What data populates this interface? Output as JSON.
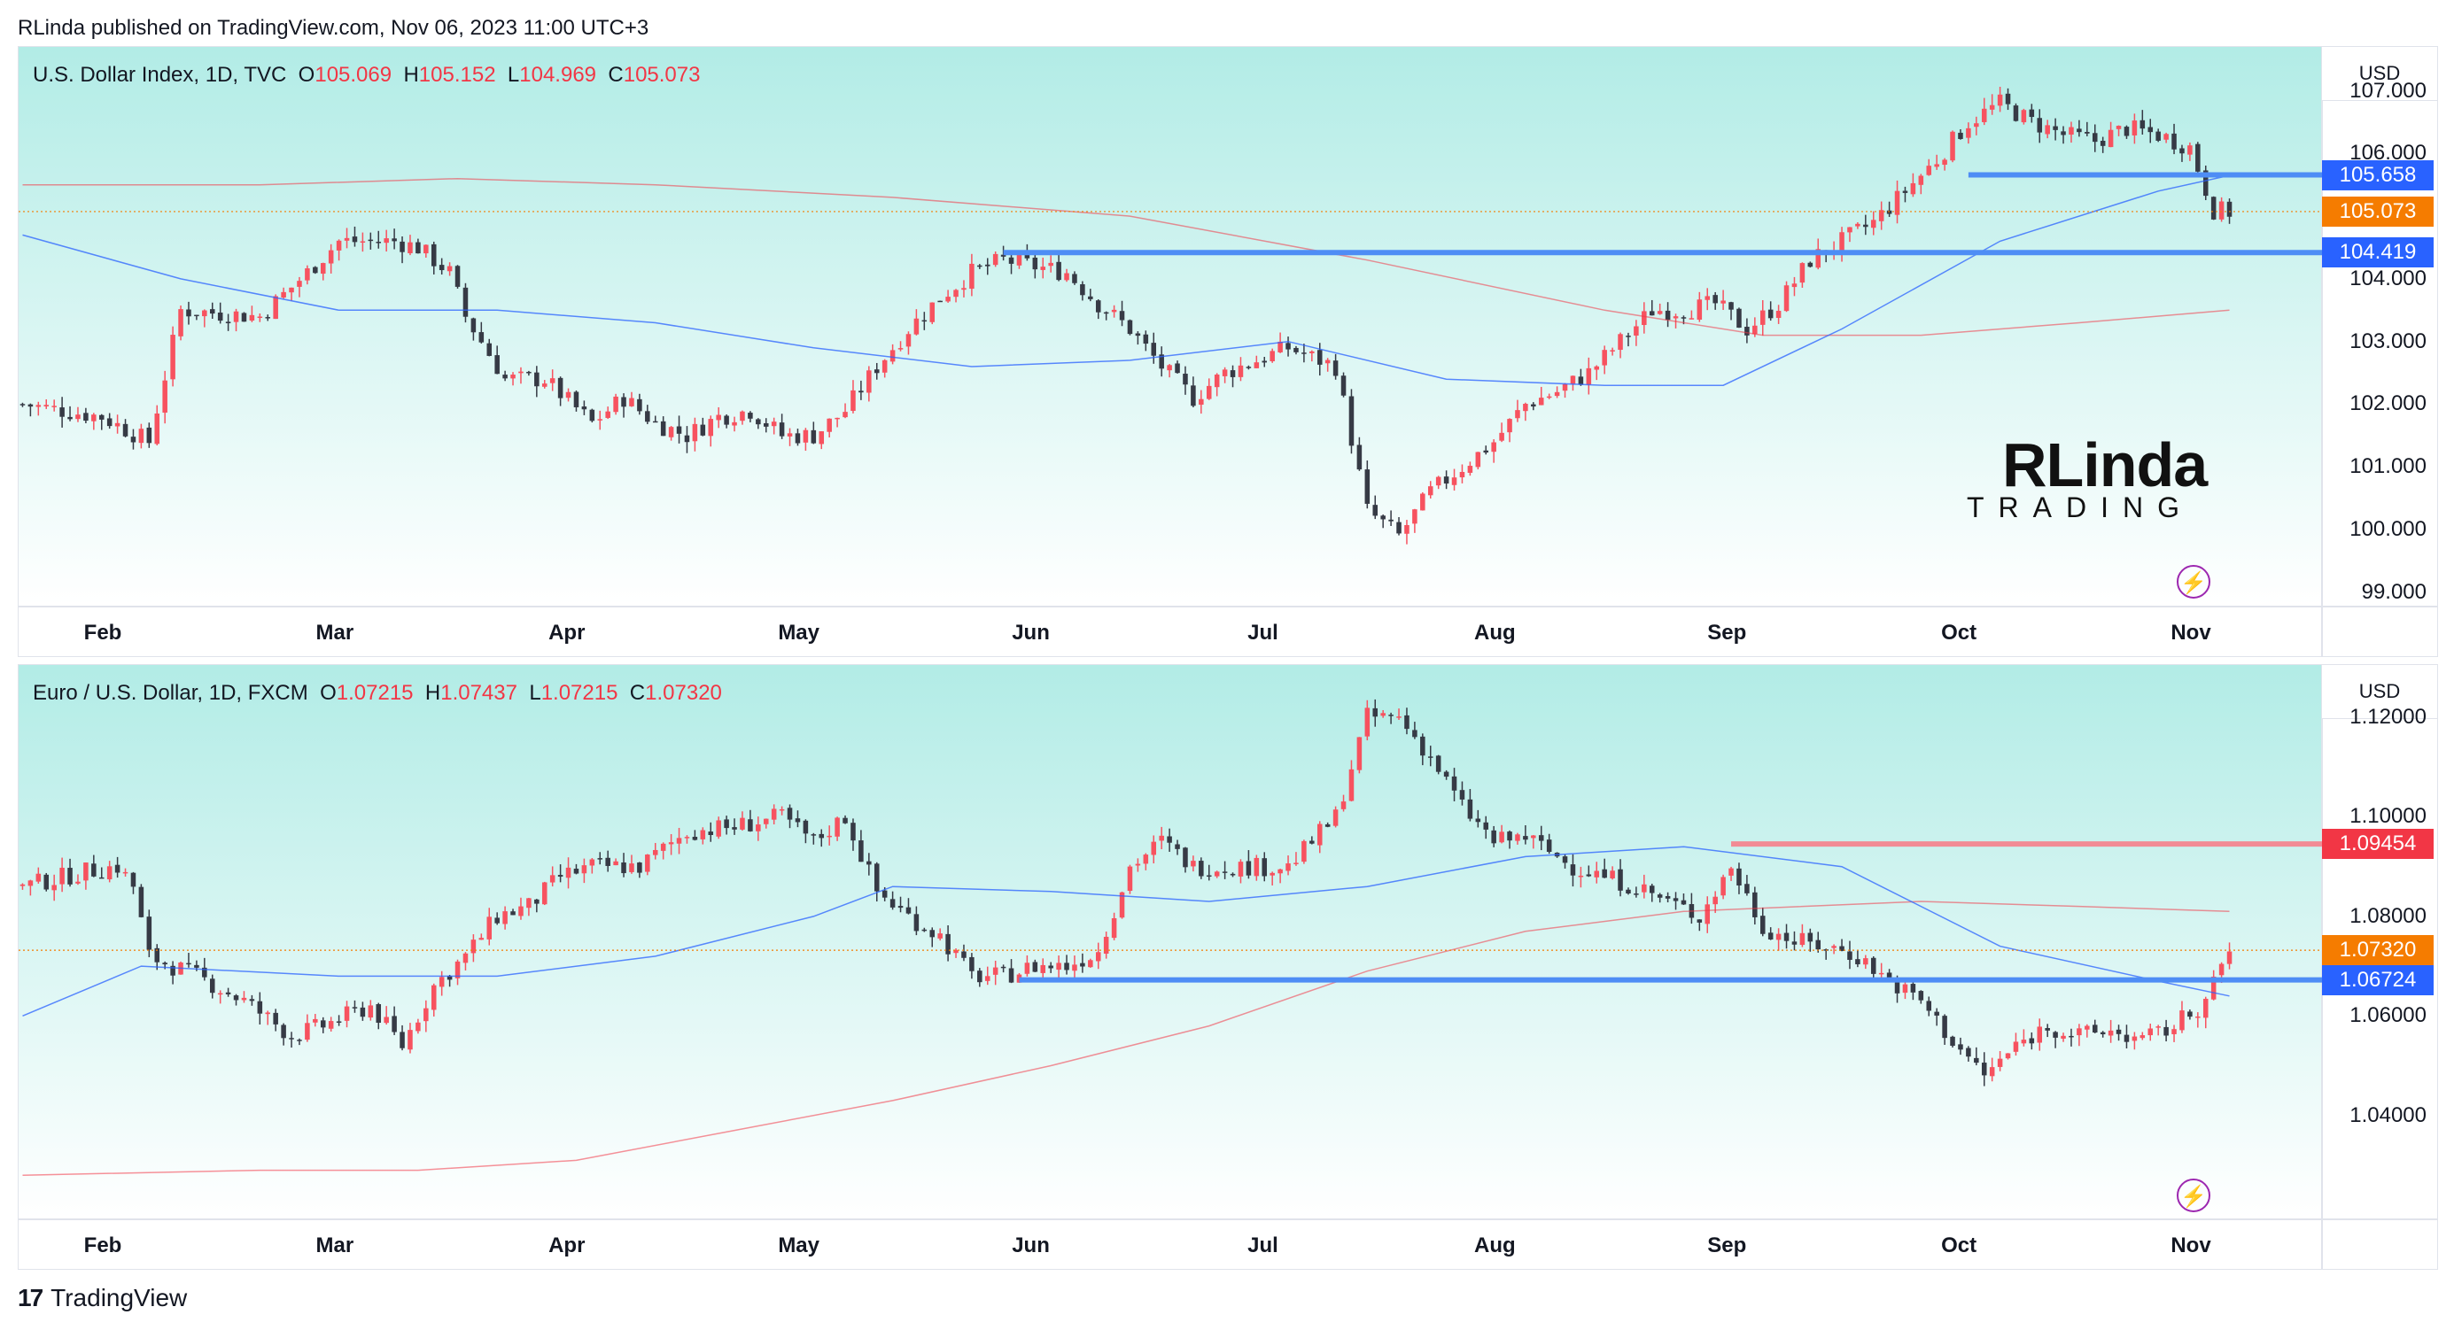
{
  "header": {
    "text": "RLinda published on TradingView.com, Nov 06, 2023 11:00 UTC+3"
  },
  "colors": {
    "up": "#f7525f",
    "down": "#363a45",
    "sma50": "#2962ff",
    "sma200": "#f23645",
    "support": "#4e8df5",
    "resistance": "#f28b95",
    "bg_top": "#b2ece6",
    "bg_bottom": "#ffffff"
  },
  "x_axis": {
    "labels": [
      "Feb",
      "Mar",
      "Apr",
      "May",
      "Jun",
      "Jul",
      "Aug",
      "Sep",
      "Oct",
      "Nov"
    ]
  },
  "logo": {
    "line1": "RLinda",
    "line2": "TRADING"
  },
  "footer": {
    "brand": "TradingView"
  },
  "chart_data": [
    {
      "type": "candlestick",
      "legend": {
        "name": "U.S. Dollar Index, 1D, TVC",
        "o_label": "O",
        "o": "105.069",
        "h_label": "H",
        "h": "105.152",
        "l_label": "L",
        "l": "104.969",
        "c_label": "C",
        "c": "105.073"
      },
      "currency": "USD",
      "ylim": [
        98.8,
        107.7
      ],
      "y_ticks": [
        "107.000",
        "106.000",
        "104.000",
        "103.000",
        "102.000",
        "101.000",
        "100.000",
        "99.000"
      ],
      "y_tick_values": [
        107,
        106,
        104,
        103,
        102,
        101,
        100,
        99
      ],
      "close_path": [
        [
          0,
          102
        ],
        [
          10,
          101.8
        ],
        [
          16,
          101.4
        ],
        [
          20,
          103.5
        ],
        [
          30,
          103.4
        ],
        [
          36,
          104.1
        ],
        [
          40,
          104.6
        ],
        [
          44,
          104.6
        ],
        [
          47,
          104.6
        ],
        [
          50,
          104.5
        ],
        [
          54,
          104.1
        ],
        [
          56,
          103.4
        ],
        [
          61,
          102.4
        ],
        [
          66,
          102.4
        ],
        [
          72,
          101.7
        ],
        [
          76,
          102.1
        ],
        [
          80,
          101.7
        ],
        [
          84,
          101.5
        ],
        [
          88,
          101.8
        ],
        [
          92,
          101.9
        ],
        [
          96,
          101.5
        ],
        [
          100,
          101.5
        ],
        [
          104,
          101.9
        ],
        [
          108,
          102.6
        ],
        [
          112,
          103.2
        ],
        [
          116,
          103.7
        ],
        [
          120,
          104.1
        ],
        [
          124,
          104.3
        ],
        [
          128,
          104.2
        ],
        [
          132,
          104.1
        ],
        [
          136,
          103.6
        ],
        [
          140,
          103.2
        ],
        [
          144,
          102.6
        ],
        [
          148,
          102.1
        ],
        [
          152,
          102.5
        ],
        [
          156,
          102.7
        ],
        [
          160,
          102.9
        ],
        [
          166,
          102.6
        ],
        [
          170,
          100.3
        ],
        [
          174,
          99.9
        ],
        [
          178,
          100.6
        ],
        [
          182,
          101
        ],
        [
          186,
          101.4
        ],
        [
          190,
          102
        ],
        [
          194,
          102.2
        ],
        [
          198,
          102.5
        ],
        [
          202,
          103
        ],
        [
          206,
          103.5
        ],
        [
          210,
          103.5
        ],
        [
          214,
          103.6
        ],
        [
          218,
          103.2
        ],
        [
          222,
          103.6
        ],
        [
          226,
          104.3
        ],
        [
          230,
          104.6
        ],
        [
          234,
          104.9
        ],
        [
          238,
          105.4
        ],
        [
          242,
          105.9
        ],
        [
          246,
          106.5
        ],
        [
          250,
          106.8
        ],
        [
          254,
          106.5
        ],
        [
          258,
          106.3
        ],
        [
          262,
          106.2
        ],
        [
          266,
          106.4
        ],
        [
          270,
          106.3
        ],
        [
          274,
          106.1
        ],
        [
          277,
          105.1
        ],
        [
          279,
          105.07
        ]
      ],
      "n_candles": 280,
      "sma50": [
        [
          0,
          104.7
        ],
        [
          20,
          104
        ],
        [
          40,
          103.5
        ],
        [
          60,
          103.5
        ],
        [
          80,
          103.3
        ],
        [
          100,
          102.9
        ],
        [
          120,
          102.6
        ],
        [
          140,
          102.7
        ],
        [
          160,
          103
        ],
        [
          180,
          102.4
        ],
        [
          200,
          102.3
        ],
        [
          215,
          102.3
        ],
        [
          230,
          103.2
        ],
        [
          250,
          104.6
        ],
        [
          270,
          105.4
        ],
        [
          279,
          105.65
        ]
      ],
      "sma200": [
        [
          0,
          105.5
        ],
        [
          30,
          105.5
        ],
        [
          55,
          105.6
        ],
        [
          80,
          105.5
        ],
        [
          110,
          105.3
        ],
        [
          140,
          105
        ],
        [
          170,
          104.3
        ],
        [
          200,
          103.5
        ],
        [
          220,
          103.1
        ],
        [
          240,
          103.1
        ],
        [
          260,
          103.3
        ],
        [
          279,
          103.5
        ]
      ],
      "levels": [
        {
          "value": 105.658,
          "label": "105.658",
          "from": 246,
          "color": "#4e8df5"
        },
        {
          "value": 104.419,
          "label": "104.419",
          "from": 124,
          "color": "#4e8df5"
        }
      ],
      "last": {
        "value": 105.073,
        "label": "105.073",
        "color": "#f57c00"
      }
    },
    {
      "type": "candlestick",
      "legend": {
        "name": "Euro / U.S. Dollar, 1D, FXCM",
        "o_label": "O",
        "o": "1.07215",
        "h_label": "H",
        "h": "1.07437",
        "l_label": "L",
        "l": "1.07215",
        "c_label": "C",
        "c": "1.07320"
      },
      "currency": "USD",
      "ylim": [
        1.0195,
        1.1305
      ],
      "y_ticks": [
        "1.12000",
        "1.10000",
        "1.08000",
        "1.06000",
        "1.04000"
      ],
      "y_tick_values": [
        1.12,
        1.1,
        1.08,
        1.06,
        1.04
      ],
      "close_path": [
        [
          0,
          1.086
        ],
        [
          8,
          1.089
        ],
        [
          12,
          1.09
        ],
        [
          14,
          1.086
        ],
        [
          16,
          1.072
        ],
        [
          22,
          1.068
        ],
        [
          28,
          1.063
        ],
        [
          34,
          1.056
        ],
        [
          38,
          1.058
        ],
        [
          44,
          1.062
        ],
        [
          48,
          1.054
        ],
        [
          52,
          1.066
        ],
        [
          56,
          1.072
        ],
        [
          60,
          1.08
        ],
        [
          64,
          1.082
        ],
        [
          68,
          1.088
        ],
        [
          72,
          1.09
        ],
        [
          78,
          1.09
        ],
        [
          84,
          1.097
        ],
        [
          90,
          1.098
        ],
        [
          96,
          1.1
        ],
        [
          100,
          1.095
        ],
        [
          104,
          1.1
        ],
        [
          108,
          1.085
        ],
        [
          112,
          1.08
        ],
        [
          116,
          1.076
        ],
        [
          120,
          1.068
        ],
        [
          124,
          1.068
        ],
        [
          128,
          1.07
        ],
        [
          132,
          1.07
        ],
        [
          136,
          1.073
        ],
        [
          140,
          1.09
        ],
        [
          144,
          1.095
        ],
        [
          148,
          1.09
        ],
        [
          154,
          1.09
        ],
        [
          160,
          1.09
        ],
        [
          166,
          1.1
        ],
        [
          170,
          1.12
        ],
        [
          174,
          1.12
        ],
        [
          178,
          1.112
        ],
        [
          182,
          1.102
        ],
        [
          186,
          1.095
        ],
        [
          190,
          1.096
        ],
        [
          196,
          1.09
        ],
        [
          200,
          1.088
        ],
        [
          204,
          1.086
        ],
        [
          208,
          1.083
        ],
        [
          212,
          1.08
        ],
        [
          216,
          1.09
        ],
        [
          220,
          1.078
        ],
        [
          224,
          1.075
        ],
        [
          228,
          1.074
        ],
        [
          232,
          1.072
        ],
        [
          236,
          1.067
        ],
        [
          240,
          1.063
        ],
        [
          244,
          1.055
        ],
        [
          248,
          1.048
        ],
        [
          252,
          1.054
        ],
        [
          256,
          1.058
        ],
        [
          260,
          1.056
        ],
        [
          264,
          1.057
        ],
        [
          268,
          1.055
        ],
        [
          272,
          1.058
        ],
        [
          276,
          1.063
        ],
        [
          279,
          1.0732
        ]
      ],
      "n_candles": 280,
      "sma50": [
        [
          0,
          1.06
        ],
        [
          15,
          1.07
        ],
        [
          40,
          1.068
        ],
        [
          60,
          1.068
        ],
        [
          80,
          1.072
        ],
        [
          100,
          1.08
        ],
        [
          110,
          1.086
        ],
        [
          130,
          1.085
        ],
        [
          150,
          1.083
        ],
        [
          170,
          1.086
        ],
        [
          190,
          1.092
        ],
        [
          210,
          1.094
        ],
        [
          230,
          1.09
        ],
        [
          250,
          1.074
        ],
        [
          270,
          1.067
        ],
        [
          279,
          1.064
        ]
      ],
      "sma200": [
        [
          0,
          1.028
        ],
        [
          30,
          1.029
        ],
        [
          50,
          1.029
        ],
        [
          70,
          1.031
        ],
        [
          90,
          1.037
        ],
        [
          110,
          1.043
        ],
        [
          130,
          1.05
        ],
        [
          150,
          1.058
        ],
        [
          170,
          1.069
        ],
        [
          190,
          1.077
        ],
        [
          210,
          1.081
        ],
        [
          240,
          1.083
        ],
        [
          260,
          1.082
        ],
        [
          279,
          1.081
        ]
      ],
      "levels": [
        {
          "value": 1.09454,
          "label": "1.09454",
          "from": 216,
          "color": "#f28b95"
        },
        {
          "value": 1.06724,
          "label": "1.06724",
          "from": 126,
          "color": "#4e8df5"
        }
      ],
      "last": {
        "value": 1.0732,
        "label": "1.07320",
        "color": "#f57c00"
      }
    }
  ]
}
